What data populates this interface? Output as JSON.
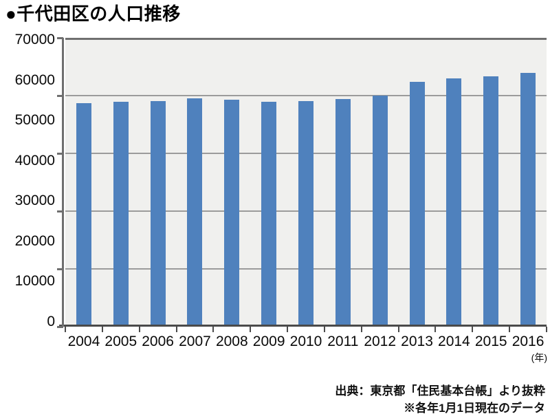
{
  "title": "●千代田区の人口推移",
  "unit_label": "(年)",
  "source_line1": "出典：東京都「住民基本台帳」より抜粋",
  "source_line2": "※各年1月1日現在のデータ",
  "chart_data": {
    "type": "bar",
    "title": "千代田区の人口推移",
    "categories": [
      "2004",
      "2005",
      "2006",
      "2007",
      "2008",
      "2009",
      "2010",
      "2011",
      "2012",
      "2013",
      "2014",
      "2015",
      "2016"
    ],
    "values": [
      54100,
      54400,
      54600,
      55300,
      54900,
      54400,
      54500,
      55100,
      55900,
      59300,
      60100,
      60600,
      61500
    ],
    "xlabel": "(年)",
    "ylabel": "",
    "ylim": [
      0,
      70000
    ],
    "yticks": [
      0,
      10000,
      20000,
      30000,
      40000,
      50000,
      60000,
      70000
    ],
    "grid": true,
    "grid_divisions": 5,
    "legend_position": "none",
    "note": "各年1月1日現在のデータ",
    "source": "東京都「住民基本台帳」より抜粋"
  },
  "colors": {
    "bar": "#4f81bd",
    "plot_bg": "#f0f0ee",
    "gridline": "#9b9b9b",
    "frame": "#6f6f6f",
    "axis_bottom": "#4a4a4a",
    "text": "#0a0a0a"
  }
}
